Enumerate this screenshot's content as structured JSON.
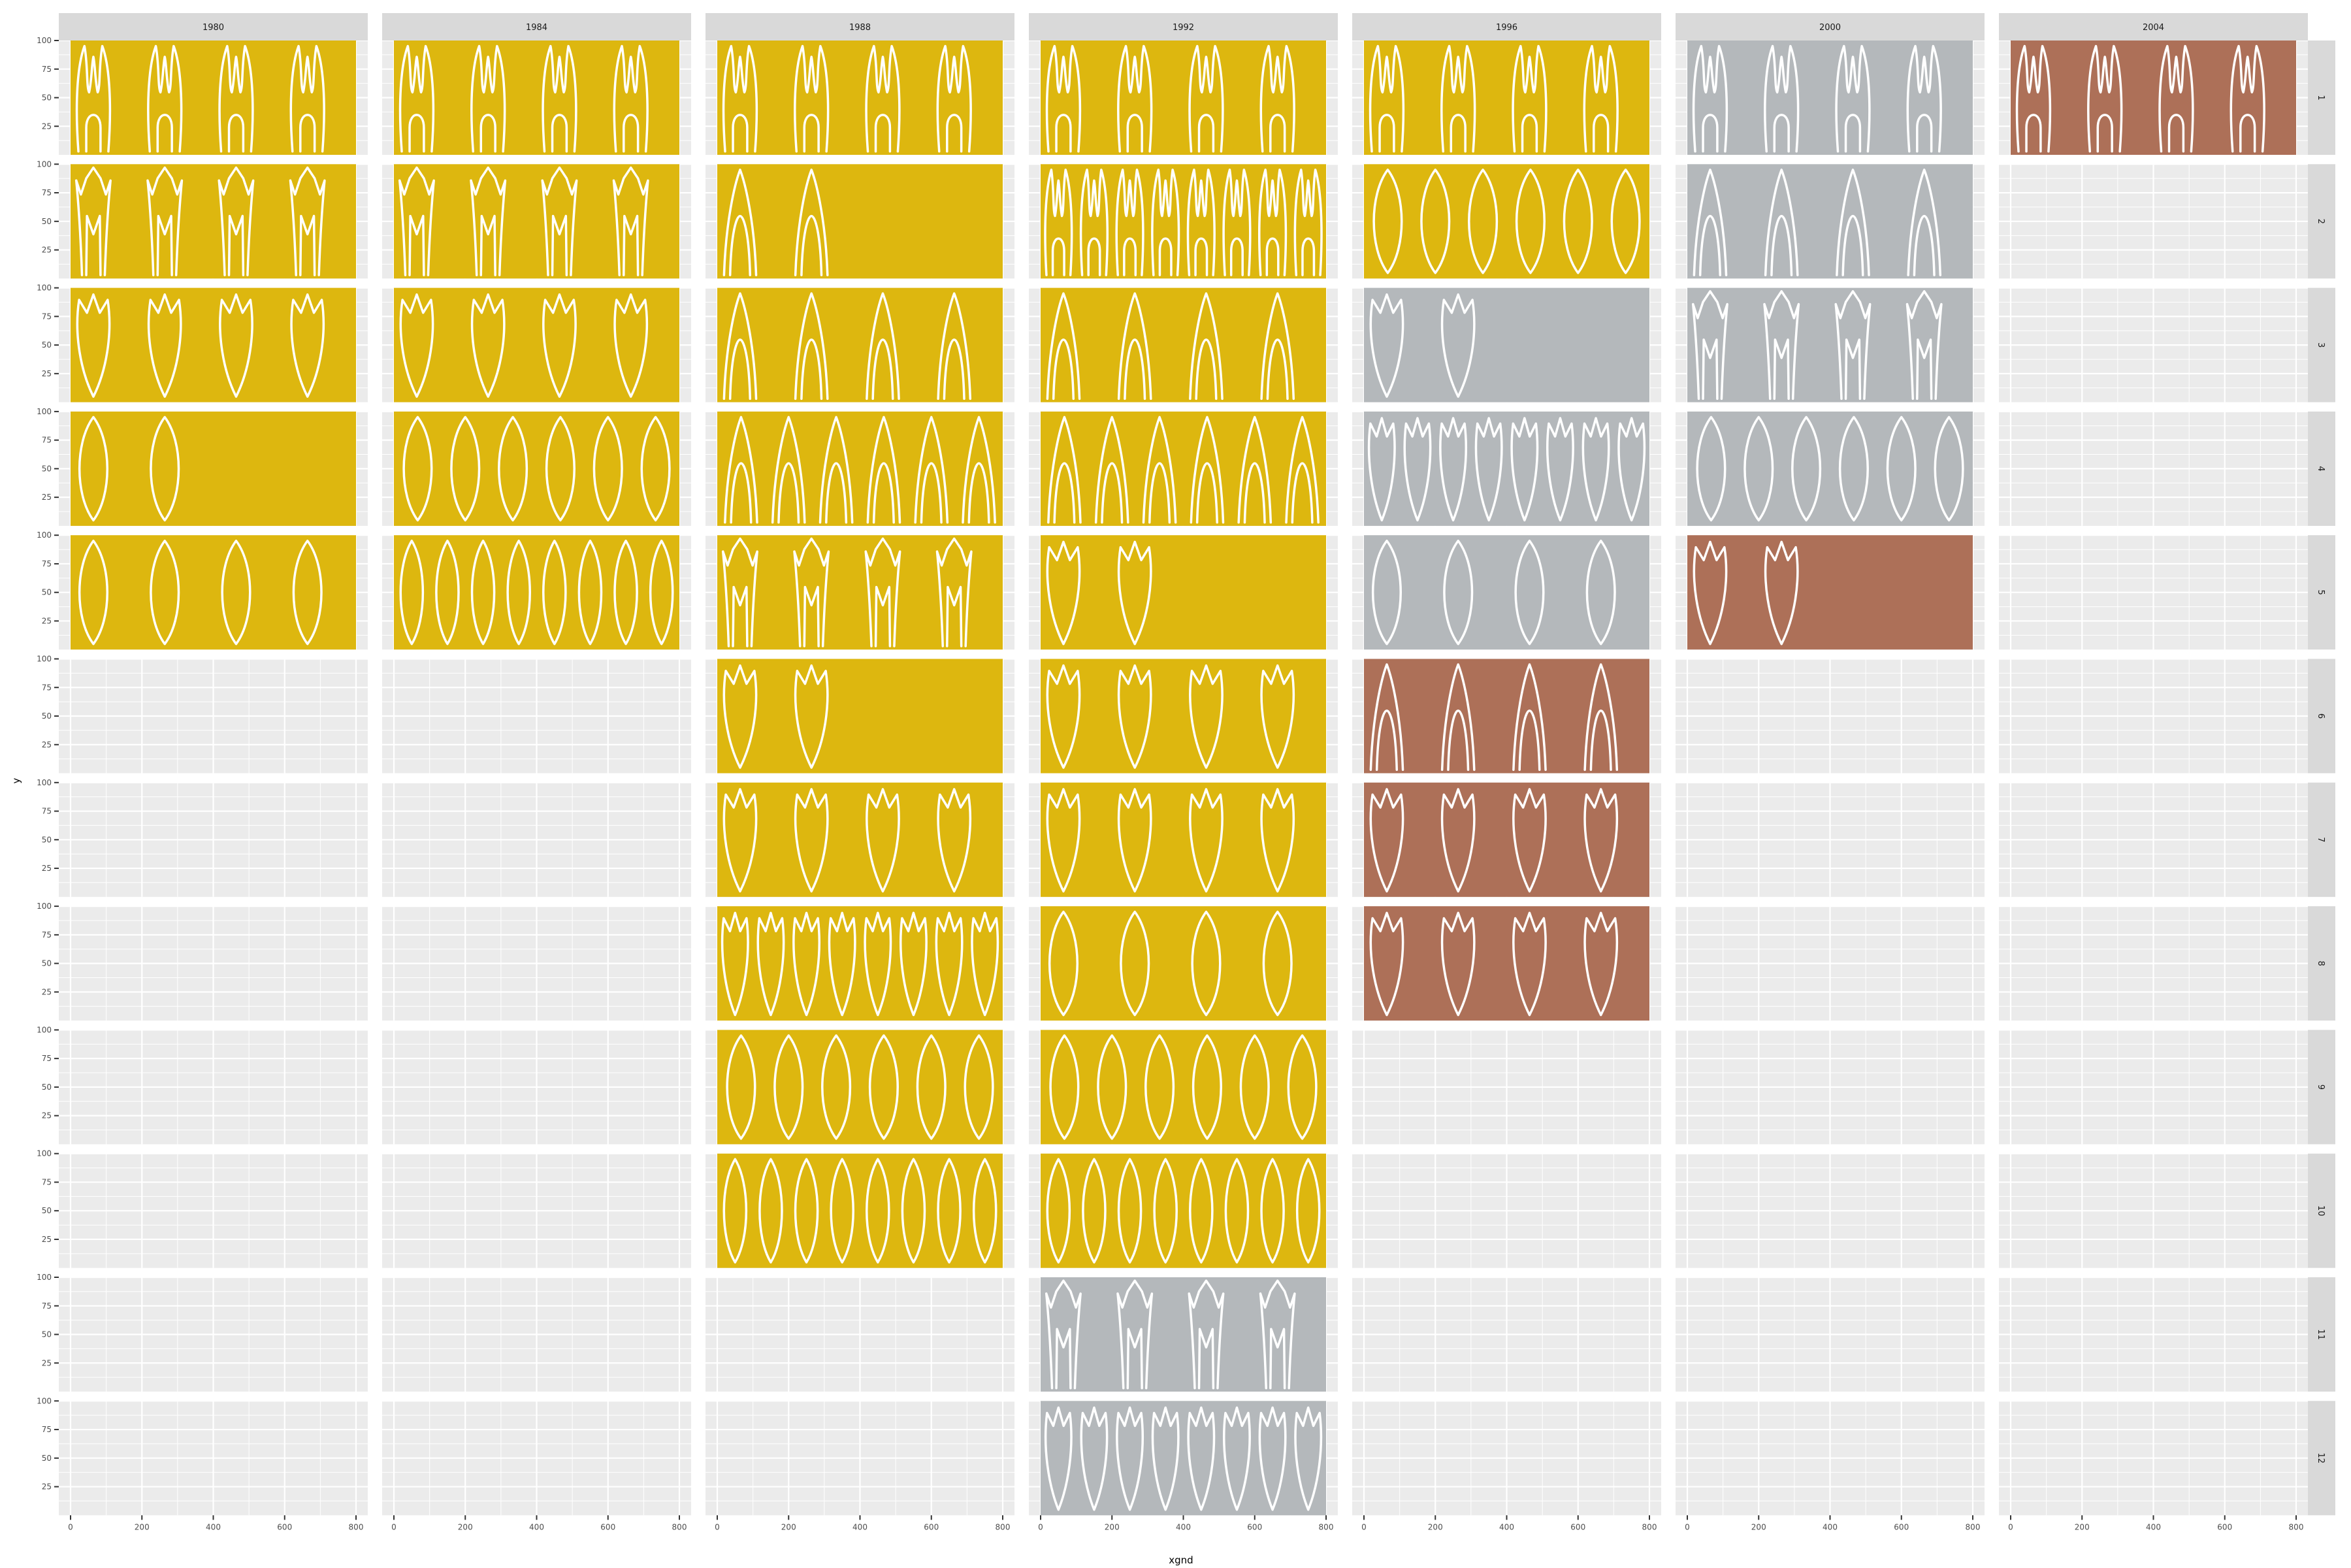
{
  "chart_data": {
    "type": "faceted-glyph-grid",
    "xlabel": "xgnd",
    "ylabel": "y",
    "xlim": [
      0,
      800
    ],
    "ylim": [
      0,
      100
    ],
    "x_ticks": [
      0,
      200,
      400,
      600,
      800
    ],
    "y_ticks": [
      25,
      50,
      75,
      100
    ],
    "x_tick_labels": [
      "0",
      "200",
      "400",
      "600",
      "800"
    ],
    "y_tick_labels": [
      "25",
      "50",
      "75",
      "100"
    ],
    "column_facets": [
      "1980",
      "1984",
      "1988",
      "1992",
      "1996",
      "2000",
      "2004"
    ],
    "row_facets": [
      "1",
      "2",
      "3",
      "4",
      "5",
      "6",
      "7",
      "8",
      "9",
      "10",
      "11",
      "12"
    ],
    "fill_colors": {
      "gold": "#DDB70F",
      "silver": "#B4B8BB",
      "bronze": "#AD7058"
    },
    "colors": {
      "panel_background": "#EBEBEB",
      "grid_line": "#FFFFFF",
      "strip_background": "#D9D9D9",
      "glyph_stroke": "#FFFFFF"
    },
    "cells": [
      {
        "col": "1980",
        "row": "1",
        "fill": "gold",
        "glyph": "m-shape",
        "count": 4
      },
      {
        "col": "1980",
        "row": "2",
        "fill": "gold",
        "glyph": "crown",
        "count": 4
      },
      {
        "col": "1980",
        "row": "3",
        "fill": "gold",
        "glyph": "tulip",
        "count": 4
      },
      {
        "col": "1980",
        "row": "4",
        "fill": "gold",
        "glyph": "oval",
        "count": 2
      },
      {
        "col": "1980",
        "row": "5",
        "fill": "gold",
        "glyph": "oval",
        "count": 4
      },
      {
        "col": "1984",
        "row": "1",
        "fill": "gold",
        "glyph": "m-shape",
        "count": 4
      },
      {
        "col": "1984",
        "row": "2",
        "fill": "gold",
        "glyph": "crown",
        "count": 4
      },
      {
        "col": "1984",
        "row": "3",
        "fill": "gold",
        "glyph": "tulip",
        "count": 4
      },
      {
        "col": "1984",
        "row": "4",
        "fill": "gold",
        "glyph": "oval",
        "count": 6
      },
      {
        "col": "1984",
        "row": "5",
        "fill": "gold",
        "glyph": "oval",
        "count": 8
      },
      {
        "col": "1988",
        "row": "1",
        "fill": "gold",
        "glyph": "m-shape",
        "count": 4
      },
      {
        "col": "1988",
        "row": "2",
        "fill": "gold",
        "glyph": "arch",
        "count": 2
      },
      {
        "col": "1988",
        "row": "3",
        "fill": "gold",
        "glyph": "arch",
        "count": 4
      },
      {
        "col": "1988",
        "row": "4",
        "fill": "gold",
        "glyph": "arch",
        "count": 6
      },
      {
        "col": "1988",
        "row": "5",
        "fill": "gold",
        "glyph": "crown",
        "count": 4
      },
      {
        "col": "1988",
        "row": "6",
        "fill": "gold",
        "glyph": "tulip",
        "count": 2
      },
      {
        "col": "1988",
        "row": "7",
        "fill": "gold",
        "glyph": "tulip",
        "count": 4
      },
      {
        "col": "1988",
        "row": "8",
        "fill": "gold",
        "glyph": "tulip",
        "count": 8
      },
      {
        "col": "1988",
        "row": "9",
        "fill": "gold",
        "glyph": "oval",
        "count": 6
      },
      {
        "col": "1988",
        "row": "10",
        "fill": "gold",
        "glyph": "oval",
        "count": 8
      },
      {
        "col": "1992",
        "row": "1",
        "fill": "gold",
        "glyph": "m-shape",
        "count": 4
      },
      {
        "col": "1992",
        "row": "2",
        "fill": "gold",
        "glyph": "m-shape",
        "count": 8
      },
      {
        "col": "1992",
        "row": "3",
        "fill": "gold",
        "glyph": "arch",
        "count": 4
      },
      {
        "col": "1992",
        "row": "4",
        "fill": "gold",
        "glyph": "arch",
        "count": 6
      },
      {
        "col": "1992",
        "row": "5",
        "fill": "gold",
        "glyph": "tulip",
        "count": 2
      },
      {
        "col": "1992",
        "row": "6",
        "fill": "gold",
        "glyph": "tulip",
        "count": 4
      },
      {
        "col": "1992",
        "row": "7",
        "fill": "gold",
        "glyph": "tulip",
        "count": 4
      },
      {
        "col": "1992",
        "row": "8",
        "fill": "gold",
        "glyph": "oval",
        "count": 4
      },
      {
        "col": "1992",
        "row": "9",
        "fill": "gold",
        "glyph": "oval",
        "count": 6
      },
      {
        "col": "1992",
        "row": "10",
        "fill": "gold",
        "glyph": "oval",
        "count": 8
      },
      {
        "col": "1992",
        "row": "11",
        "fill": "silver",
        "glyph": "crown",
        "count": 4
      },
      {
        "col": "1992",
        "row": "12",
        "fill": "silver",
        "glyph": "tulip",
        "count": 8
      },
      {
        "col": "1996",
        "row": "1",
        "fill": "gold",
        "glyph": "m-shape",
        "count": 4
      },
      {
        "col": "1996",
        "row": "2",
        "fill": "gold",
        "glyph": "oval",
        "count": 6
      },
      {
        "col": "1996",
        "row": "3",
        "fill": "silver",
        "glyph": "tulip",
        "count": 2
      },
      {
        "col": "1996",
        "row": "4",
        "fill": "silver",
        "glyph": "tulip",
        "count": 8
      },
      {
        "col": "1996",
        "row": "5",
        "fill": "silver",
        "glyph": "oval",
        "count": 4
      },
      {
        "col": "1996",
        "row": "6",
        "fill": "bronze",
        "glyph": "arch",
        "count": 4
      },
      {
        "col": "1996",
        "row": "7",
        "fill": "bronze",
        "glyph": "tulip",
        "count": 4
      },
      {
        "col": "1996",
        "row": "8",
        "fill": "bronze",
        "glyph": "tulip",
        "count": 4
      },
      {
        "col": "2000",
        "row": "1",
        "fill": "silver",
        "glyph": "m-shape",
        "count": 4
      },
      {
        "col": "2000",
        "row": "2",
        "fill": "silver",
        "glyph": "arch",
        "count": 4
      },
      {
        "col": "2000",
        "row": "3",
        "fill": "silver",
        "glyph": "crown",
        "count": 4
      },
      {
        "col": "2000",
        "row": "4",
        "fill": "silver",
        "glyph": "oval",
        "count": 6
      },
      {
        "col": "2000",
        "row": "5",
        "fill": "bronze",
        "glyph": "tulip",
        "count": 2
      },
      {
        "col": "2004",
        "row": "1",
        "fill": "bronze",
        "glyph": "m-shape",
        "count": 4
      }
    ]
  }
}
